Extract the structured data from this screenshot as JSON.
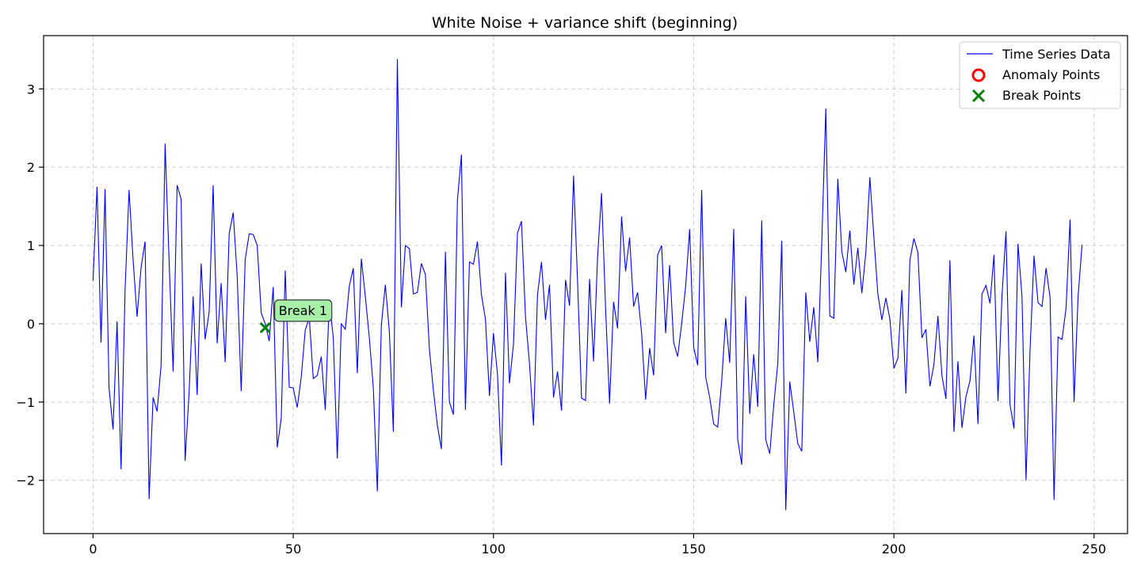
{
  "chart_data": {
    "type": "line",
    "title": "White Noise + variance shift (beginning)",
    "xlabel": "",
    "ylabel": "",
    "xlim": [
      -12.35,
      258.35
    ],
    "ylim": [
      -2.68,
      3.68
    ],
    "xticks": [
      0,
      50,
      100,
      150,
      200,
      250
    ],
    "yticks": [
      -2,
      -1,
      0,
      1,
      2,
      3
    ],
    "xtick_labels": [
      "0",
      "50",
      "100",
      "150",
      "200",
      "250"
    ],
    "ytick_labels": [
      "−2",
      "−1",
      "0",
      "1",
      "2",
      "3"
    ],
    "grid": true,
    "legend_position": "top-right",
    "series": [
      {
        "name": "Time Series Data",
        "color": "#0000ff",
        "x_start": 0,
        "values": [
          0.55,
          1.75,
          -0.24,
          1.72,
          -0.82,
          -1.35,
          0.03,
          -1.86,
          0.43,
          1.71,
          0.82,
          0.09,
          0.72,
          1.05,
          -2.24,
          -0.94,
          -1.12,
          -0.53,
          2.3,
          0.8,
          -0.61,
          1.77,
          1.59,
          -1.75,
          -0.87,
          0.35,
          -0.91,
          0.77,
          -0.2,
          0.15,
          1.77,
          -0.25,
          0.52,
          -0.49,
          1.15,
          1.42,
          0.61,
          -0.86,
          0.82,
          1.15,
          1.14,
          1.0,
          0.14,
          0.0,
          -0.22,
          0.47,
          -1.58,
          -1.21,
          0.68,
          -0.81,
          -0.82,
          -1.07,
          -0.68,
          -0.08,
          0.08,
          -0.7,
          -0.66,
          -0.42,
          -1.1,
          0.3,
          -0.18,
          -1.72,
          0.0,
          -0.07,
          0.48,
          0.71,
          -0.63,
          0.83,
          0.35,
          -0.18,
          -0.82,
          -2.14,
          -0.02,
          0.5,
          -0.1,
          -1.38,
          3.38,
          0.21,
          1.0,
          0.96,
          0.38,
          0.4,
          0.77,
          0.63,
          -0.32,
          -0.85,
          -1.3,
          -1.6,
          0.92,
          -1.0,
          -1.16,
          1.58,
          2.16,
          -1.1,
          0.79,
          0.76,
          1.05,
          0.37,
          0.06,
          -0.92,
          -0.12,
          -0.64,
          -1.81,
          0.65,
          -0.76,
          -0.26,
          1.16,
          1.31,
          0.09,
          -0.51,
          -1.3,
          0.37,
          0.79,
          0.05,
          0.5,
          -0.94,
          -0.61,
          -1.11,
          0.56,
          0.23,
          1.89,
          0.55,
          -0.95,
          -0.98,
          0.57,
          -0.48,
          0.85,
          1.67,
          0.2,
          -1.02,
          0.28,
          -0.06,
          1.37,
          0.67,
          1.1,
          0.22,
          0.4,
          -0.12,
          -0.97,
          -0.31,
          -0.66,
          0.88,
          1.0,
          -0.12,
          0.75,
          -0.24,
          -0.42,
          0.0,
          0.48,
          1.21,
          -0.3,
          -0.53,
          1.71,
          -0.68,
          -0.94,
          -1.28,
          -1.32,
          -0.73,
          0.07,
          -0.5,
          1.21,
          -1.48,
          -1.8,
          0.35,
          -1.15,
          -0.39,
          -1.06,
          1.32,
          -1.48,
          -1.66,
          -1.04,
          -0.51,
          1.06,
          -2.38,
          -0.74,
          -1.13,
          -1.53,
          -1.63,
          0.4,
          -0.23,
          0.21,
          -0.49,
          1.05,
          2.75,
          0.1,
          0.07,
          1.85,
          0.92,
          0.66,
          1.19,
          0.5,
          0.97,
          0.39,
          0.91,
          1.87,
          1.11,
          0.38,
          0.05,
          0.33,
          0.06,
          -0.57,
          -0.44,
          0.43,
          -0.89,
          0.81,
          1.09,
          0.91,
          -0.18,
          -0.07,
          -0.8,
          -0.52,
          0.1,
          -0.66,
          -0.96,
          0.81,
          -1.38,
          -0.48,
          -1.33,
          -0.93,
          -0.73,
          -0.15,
          -1.28,
          0.38,
          0.49,
          0.26,
          0.88,
          -0.99,
          0.36,
          1.18,
          -1.03,
          -1.34,
          1.02,
          0.34,
          -2.0,
          -0.34,
          0.87,
          0.27,
          0.22,
          0.71,
          0.34,
          -2.25,
          -0.17,
          -0.2,
          0.2,
          1.33,
          -1.0,
          0.35,
          1.01
        ]
      }
    ],
    "anomalies": {
      "name": "Anomaly Points",
      "color": "#ff0000",
      "points": []
    },
    "break_points": {
      "name": "Break Points",
      "color": "#008000",
      "points": [
        {
          "x": 43,
          "y": -0.05,
          "label": "Break 1"
        }
      ]
    },
    "annotation_box_color": "#a8f0a8"
  }
}
